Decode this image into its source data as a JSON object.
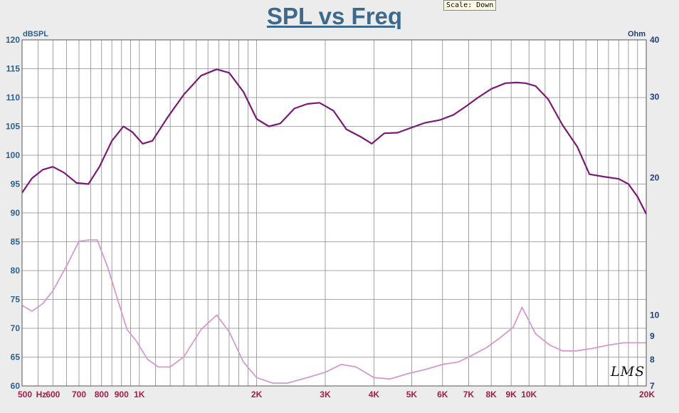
{
  "chart_data": {
    "type": "line",
    "title": "SPL vs Freq",
    "scale_badge": "Scale: Down",
    "watermark": "LMS",
    "x_axis": {
      "scale": "log",
      "range": [
        500,
        20000
      ],
      "tick_labels": [
        {
          "value": 500,
          "label": "500"
        },
        {
          "value": 560,
          "label": "Hz"
        },
        {
          "value": 600,
          "label": "600"
        },
        {
          "value": 700,
          "label": "700"
        },
        {
          "value": 800,
          "label": "800"
        },
        {
          "value": 900,
          "label": "900"
        },
        {
          "value": 1000,
          "label": "1K"
        },
        {
          "value": 2000,
          "label": "2K"
        },
        {
          "value": 3000,
          "label": "3K"
        },
        {
          "value": 4000,
          "label": "4K"
        },
        {
          "value": 5000,
          "label": "5K"
        },
        {
          "value": 6000,
          "label": "6K"
        },
        {
          "value": 7000,
          "label": "7K"
        },
        {
          "value": 8000,
          "label": "8K"
        },
        {
          "value": 9000,
          "label": "9K"
        },
        {
          "value": 10000,
          "label": "10K"
        },
        {
          "value": 20000,
          "label": "20K"
        }
      ]
    },
    "y_left": {
      "unit": "dBSPL",
      "range": [
        60,
        120
      ],
      "ticks": [
        60,
        65,
        70,
        75,
        80,
        85,
        90,
        95,
        100,
        105,
        110,
        115,
        120
      ]
    },
    "y_right": {
      "unit": "Ohm",
      "scale": "log",
      "range": [
        7,
        40
      ],
      "ticks": [
        7,
        8,
        9,
        10,
        20,
        30,
        40
      ]
    },
    "grid": true,
    "colors": {
      "background": "#ececec",
      "plot_background": "#ffffff",
      "grid": "#8a8a8a",
      "spl_line": "#7a1a78",
      "impedance_line": "#d49ad0",
      "left_axis_text": "#2e5f8a",
      "x_axis_text": "#a0204a",
      "right_axis_text": "#1f3f7a"
    },
    "series": [
      {
        "axis": "left",
        "points": [
          [
            500,
            93.5
          ],
          [
            530,
            96
          ],
          [
            565,
            97.5
          ],
          [
            600,
            98
          ],
          [
            640,
            97
          ],
          [
            690,
            95.2
          ],
          [
            740,
            95
          ],
          [
            790,
            98
          ],
          [
            850,
            102.5
          ],
          [
            910,
            105
          ],
          [
            960,
            104
          ],
          [
            1020,
            102
          ],
          [
            1080,
            102.5
          ],
          [
            1180,
            106.5
          ],
          [
            1300,
            110.5
          ],
          [
            1440,
            113.8
          ],
          [
            1580,
            114.9
          ],
          [
            1700,
            114.3
          ],
          [
            1850,
            111
          ],
          [
            2000,
            106.3
          ],
          [
            2150,
            105
          ],
          [
            2300,
            105.5
          ],
          [
            2500,
            108.1
          ],
          [
            2700,
            108.9
          ],
          [
            2900,
            109.1
          ],
          [
            3150,
            107.7
          ],
          [
            3400,
            104.5
          ],
          [
            3700,
            103.2
          ],
          [
            3950,
            102
          ],
          [
            4250,
            103.8
          ],
          [
            4600,
            103.9
          ],
          [
            5000,
            104.8
          ],
          [
            5400,
            105.6
          ],
          [
            5900,
            106.1
          ],
          [
            6400,
            107
          ],
          [
            6900,
            108.5
          ],
          [
            7400,
            110
          ],
          [
            8000,
            111.5
          ],
          [
            8700,
            112.5
          ],
          [
            9300,
            112.6
          ],
          [
            9800,
            112.5
          ],
          [
            10400,
            112
          ],
          [
            11200,
            109.7
          ],
          [
            12200,
            105.2
          ],
          [
            13300,
            101.5
          ],
          [
            14300,
            96.7
          ],
          [
            15500,
            96.3
          ],
          [
            17000,
            95.9
          ],
          [
            18000,
            95
          ],
          [
            19000,
            92.8
          ],
          [
            20000,
            89.8
          ]
        ]
      },
      {
        "axis": "right",
        "points": [
          [
            500,
            10.5
          ],
          [
            530,
            10.2
          ],
          [
            565,
            10.6
          ],
          [
            600,
            11.3
          ],
          [
            650,
            12.8
          ],
          [
            700,
            14.5
          ],
          [
            740,
            14.6
          ],
          [
            780,
            14.6
          ],
          [
            830,
            12.7
          ],
          [
            880,
            10.8
          ],
          [
            930,
            9.3
          ],
          [
            980,
            8.8
          ],
          [
            1050,
            8.0
          ],
          [
            1120,
            7.7
          ],
          [
            1200,
            7.7
          ],
          [
            1300,
            8.1
          ],
          [
            1440,
            9.3
          ],
          [
            1580,
            10.0
          ],
          [
            1700,
            9.2
          ],
          [
            1850,
            7.9
          ],
          [
            2000,
            7.3
          ],
          [
            2200,
            7.1
          ],
          [
            2400,
            7.1
          ],
          [
            2700,
            7.3
          ],
          [
            3000,
            7.5
          ],
          [
            3300,
            7.8
          ],
          [
            3600,
            7.7
          ],
          [
            4000,
            7.3
          ],
          [
            4400,
            7.25
          ],
          [
            4900,
            7.45
          ],
          [
            5400,
            7.6
          ],
          [
            6000,
            7.8
          ],
          [
            6600,
            7.9
          ],
          [
            7200,
            8.2
          ],
          [
            7800,
            8.5
          ],
          [
            8400,
            8.9
          ],
          [
            9100,
            9.4
          ],
          [
            9600,
            10.4
          ],
          [
            10400,
            9.1
          ],
          [
            11300,
            8.6
          ],
          [
            12200,
            8.35
          ],
          [
            13200,
            8.35
          ],
          [
            14500,
            8.45
          ],
          [
            16000,
            8.6
          ],
          [
            17500,
            8.7
          ],
          [
            20000,
            8.7
          ]
        ]
      }
    ]
  }
}
